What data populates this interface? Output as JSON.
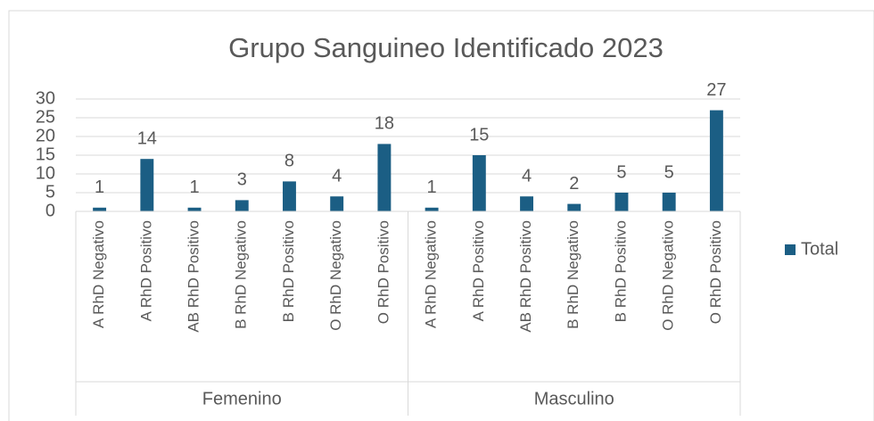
{
  "chart_data": {
    "type": "bar",
    "title": "Grupo Sanguineo Identificado 2023",
    "groups": [
      {
        "label": "Femenino",
        "categories": [
          "A RhD Negativo",
          "A RhD Positivo",
          "AB RhD Positivo",
          "B RhD Negativo",
          "B RhD Positivo",
          "O RhD Negativo",
          "O RhD Positivo"
        ]
      },
      {
        "label": "Masculino",
        "categories": [
          "A RhD Negativo",
          "A RhD Positivo",
          "AB RhD Positivo",
          "B RhD Negativo",
          "B RhD Positivo",
          "O RhD Negativo",
          "O RhD Positivo"
        ]
      }
    ],
    "series": [
      {
        "name": "Total",
        "color": "#1b5e84",
        "values": [
          1,
          14,
          1,
          3,
          8,
          4,
          18,
          1,
          15,
          4,
          2,
          5,
          5,
          27
        ]
      }
    ],
    "ylim": [
      0,
      30
    ],
    "yticks": [
      0,
      5,
      10,
      15,
      20,
      25,
      30
    ],
    "grid": true,
    "legend": "right"
  }
}
